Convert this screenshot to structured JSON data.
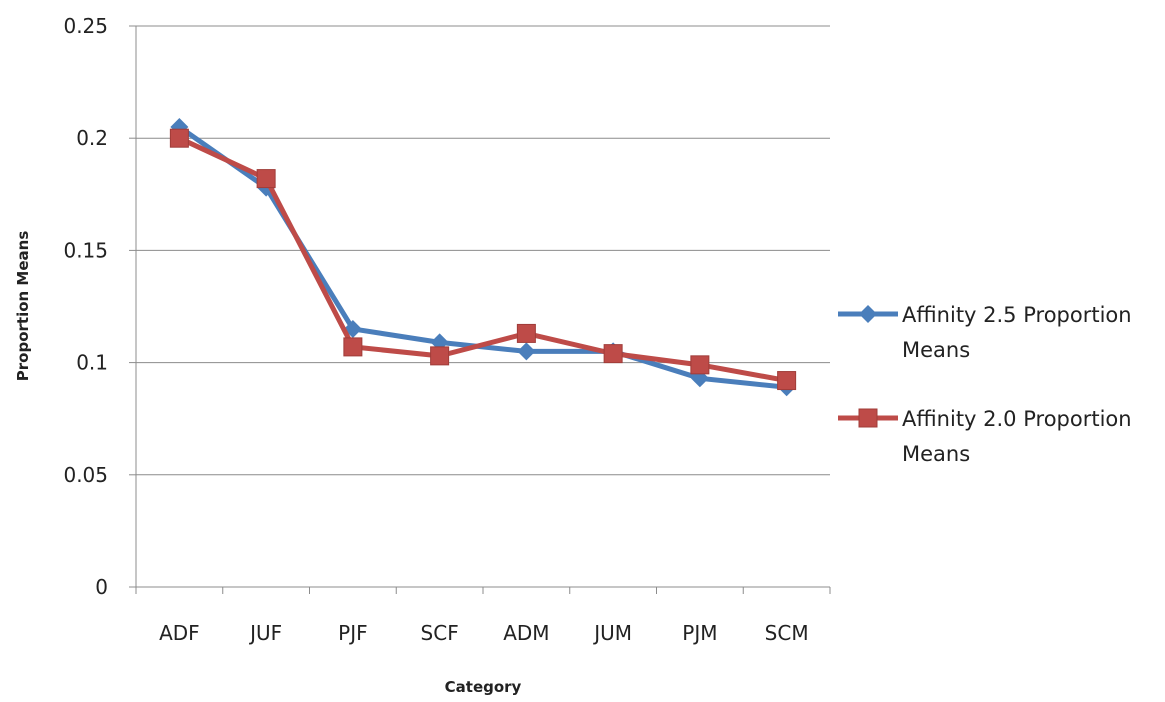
{
  "chart_data": {
    "type": "line",
    "title": "",
    "xlabel": "Category",
    "ylabel": "Proportion Means",
    "categories": [
      "ADF",
      "JUF",
      "PJF",
      "SCF",
      "ADM",
      "JUM",
      "PJM",
      "SCM"
    ],
    "ylim": [
      0,
      0.25
    ],
    "yticks": [
      "0",
      "0.05",
      "0.1",
      "0.15",
      "0.2",
      "0.25"
    ],
    "grid": true,
    "legend_position": "right",
    "series": [
      {
        "name": "Affinity 2.5 Proportion Means",
        "name_lines": [
          "Affinity 2.5 Proportion",
          "Means"
        ],
        "marker": "diamond",
        "color": "#4a7ebb",
        "values": [
          0.205,
          0.178,
          0.115,
          0.109,
          0.105,
          0.105,
          0.093,
          0.089
        ]
      },
      {
        "name": "Affinity 2.0 Proportion Means",
        "name_lines": [
          "Affinity 2.0 Proportion",
          "Means"
        ],
        "marker": "square",
        "color": "#be4b48",
        "values": [
          0.2,
          0.182,
          0.107,
          0.103,
          0.113,
          0.104,
          0.099,
          0.092
        ]
      }
    ],
    "gridline_color": "#8c8c8c"
  }
}
